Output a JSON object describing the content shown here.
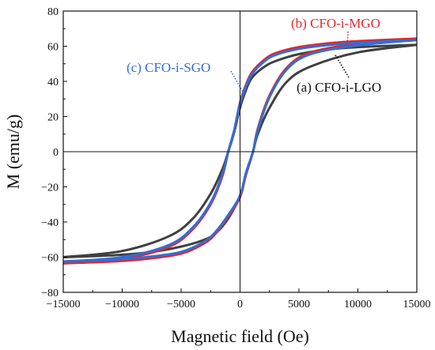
{
  "chart_data": {
    "type": "line",
    "title": "",
    "xlabel": "Magnetic field (Oe)",
    "ylabel": "M (emu/g)",
    "xlim": [
      -15000,
      15000
    ],
    "ylim": [
      -80,
      80
    ],
    "x_ticks": [
      -15000,
      -10000,
      -5000,
      0,
      5000,
      10000,
      15000
    ],
    "y_ticks": [
      -80,
      -60,
      -40,
      -20,
      0,
      20,
      40,
      60,
      80
    ],
    "x_tick_labels": [
      "−15000",
      "−10000",
      "−5000",
      "0",
      "5000",
      "10000",
      "15000"
    ],
    "y_tick_labels": [
      "−80",
      "−60",
      "−40",
      "−20",
      "0",
      "20",
      "40",
      "60",
      "80"
    ],
    "grid": false,
    "legend": "none",
    "series": [
      {
        "name": "(a) CFO-i-LGO",
        "color": "#404040",
        "upper": [
          [
            -15000,
            -60
          ],
          [
            -10000,
            -56.5
          ],
          [
            -6000,
            -48
          ],
          [
            -4000,
            -38
          ],
          [
            -2500,
            -24
          ],
          [
            -1500,
            -10
          ],
          [
            -1000,
            0
          ],
          [
            -500,
            11
          ],
          [
            0,
            25
          ],
          [
            500,
            35
          ],
          [
            1000,
            42
          ],
          [
            2000,
            48
          ],
          [
            3000,
            51.5
          ],
          [
            5000,
            55.5
          ],
          [
            8000,
            58.5
          ],
          [
            11000,
            59.8
          ],
          [
            15000,
            60.8
          ]
        ],
        "lower": [
          [
            -15000,
            -60
          ],
          [
            -11000,
            -59
          ],
          [
            -8000,
            -57.5
          ],
          [
            -5000,
            -54
          ],
          [
            -3000,
            -50
          ],
          [
            -2000,
            -46
          ],
          [
            -1000,
            -38
          ],
          [
            0,
            -25
          ],
          [
            500,
            -13
          ],
          [
            1100,
            0
          ],
          [
            1500,
            10
          ],
          [
            2500,
            25
          ],
          [
            4000,
            40
          ],
          [
            6000,
            48.5
          ],
          [
            10000,
            56.5
          ],
          [
            15000,
            60.8
          ]
        ]
      },
      {
        "name": "(b) CFO-i-MGO",
        "color": "#e0282f",
        "upper": [
          [
            -15000,
            -63.5
          ],
          [
            -10000,
            -61
          ],
          [
            -6000,
            -54
          ],
          [
            -4000,
            -44
          ],
          [
            -2500,
            -30
          ],
          [
            -1500,
            -14
          ],
          [
            -1000,
            0
          ],
          [
            -500,
            12
          ],
          [
            0,
            28
          ],
          [
            500,
            38
          ],
          [
            1000,
            45
          ],
          [
            2000,
            52
          ],
          [
            3000,
            56
          ],
          [
            5000,
            59.5
          ],
          [
            8000,
            62
          ],
          [
            11000,
            63.2
          ],
          [
            15000,
            64.3
          ]
        ],
        "lower": [
          [
            -15000,
            -63.5
          ],
          [
            -11000,
            -62.5
          ],
          [
            -8000,
            -61
          ],
          [
            -5000,
            -58
          ],
          [
            -3000,
            -52
          ],
          [
            -2000,
            -46
          ],
          [
            -1000,
            -37
          ],
          [
            0,
            -26
          ],
          [
            500,
            -13
          ],
          [
            1100,
            0
          ],
          [
            1500,
            13
          ],
          [
            2500,
            32
          ],
          [
            4000,
            48
          ],
          [
            6000,
            56.5
          ],
          [
            10000,
            61.5
          ],
          [
            15000,
            64.3
          ]
        ]
      },
      {
        "name": "(c) CFO-i-SGO",
        "color": "#2f6fd6",
        "upper": [
          [
            -15000,
            -62.5
          ],
          [
            -10000,
            -60
          ],
          [
            -6000,
            -53
          ],
          [
            -4000,
            -43
          ],
          [
            -2500,
            -29
          ],
          [
            -1500,
            -13
          ],
          [
            -1000,
            0
          ],
          [
            -500,
            12
          ],
          [
            0,
            27
          ],
          [
            500,
            37
          ],
          [
            1000,
            44
          ],
          [
            2000,
            51
          ],
          [
            3000,
            55
          ],
          [
            5000,
            58.5
          ],
          [
            8000,
            61
          ],
          [
            11000,
            62.3
          ],
          [
            15000,
            63.5
          ]
        ],
        "lower": [
          [
            -15000,
            -62.5
          ],
          [
            -11000,
            -61.5
          ],
          [
            -8000,
            -60
          ],
          [
            -5000,
            -57
          ],
          [
            -3000,
            -51
          ],
          [
            -2000,
            -45
          ],
          [
            -1000,
            -36
          ],
          [
            0,
            -25
          ],
          [
            500,
            -12
          ],
          [
            1100,
            0
          ],
          [
            1500,
            12
          ],
          [
            2500,
            31
          ],
          [
            4000,
            47
          ],
          [
            6000,
            55.5
          ],
          [
            10000,
            60.5
          ],
          [
            15000,
            63.5
          ]
        ]
      }
    ],
    "annotations": [
      {
        "text": "(b) CFO-i-MGO",
        "color": "#e0282f"
      },
      {
        "text": "(c) CFO-i-SGO",
        "color": "#2f6fd6"
      },
      {
        "text": "(a) CFO-i-LGO",
        "color": "#111111"
      }
    ]
  }
}
